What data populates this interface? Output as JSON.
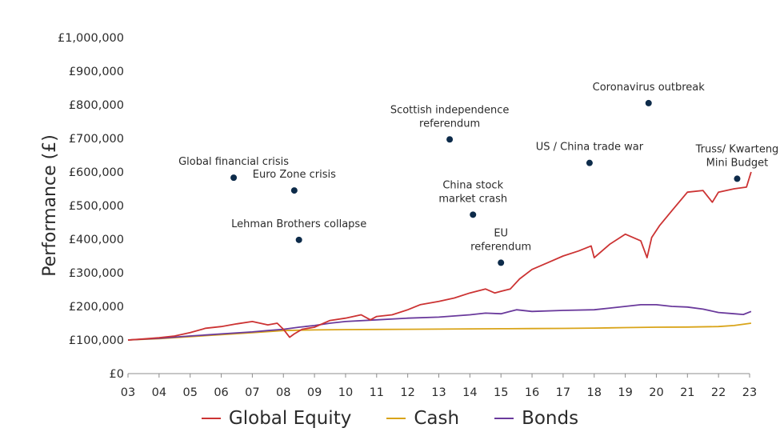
{
  "chart_data": {
    "type": "line",
    "ylabel": "Performance (£)",
    "xlabel": "",
    "ylim": [
      0,
      1000000
    ],
    "xlim": [
      2003,
      2023
    ],
    "y_ticks": [
      "£0",
      "£100,000",
      "£200,000",
      "£300,000",
      "£400,000",
      "£500,000",
      "£600,000",
      "£700,000",
      "£800,000",
      "£900,000",
      "£1,000,000"
    ],
    "x_ticks": [
      "03",
      "04",
      "05",
      "06",
      "07",
      "08",
      "09",
      "10",
      "11",
      "12",
      "13",
      "14",
      "15",
      "16",
      "17",
      "18",
      "19",
      "20",
      "21",
      "22",
      "23"
    ],
    "grid": false,
    "legend_position": "bottom",
    "series": [
      {
        "name": "Global Equity",
        "color": "#cc3333",
        "points": [
          [
            2003,
            100000
          ],
          [
            2003.5,
            103000
          ],
          [
            2004,
            107000
          ],
          [
            2004.5,
            112000
          ],
          [
            2005,
            122000
          ],
          [
            2005.5,
            135000
          ],
          [
            2006,
            140000
          ],
          [
            2006.5,
            148000
          ],
          [
            2007,
            155000
          ],
          [
            2007.5,
            145000
          ],
          [
            2007.8,
            150000
          ],
          [
            2008,
            132000
          ],
          [
            2008.2,
            108000
          ],
          [
            2008.35,
            118000
          ],
          [
            2008.6,
            132000
          ],
          [
            2009,
            138000
          ],
          [
            2009.5,
            158000
          ],
          [
            2010,
            165000
          ],
          [
            2010.5,
            175000
          ],
          [
            2010.8,
            160000
          ],
          [
            2011,
            170000
          ],
          [
            2011.5,
            175000
          ],
          [
            2012,
            190000
          ],
          [
            2012.4,
            205000
          ],
          [
            2013,
            215000
          ],
          [
            2013.5,
            225000
          ],
          [
            2014,
            240000
          ],
          [
            2014.5,
            252000
          ],
          [
            2014.8,
            240000
          ],
          [
            2015,
            245000
          ],
          [
            2015.3,
            252000
          ],
          [
            2015.6,
            282000
          ],
          [
            2016,
            310000
          ],
          [
            2016.5,
            330000
          ],
          [
            2017,
            350000
          ],
          [
            2017.5,
            365000
          ],
          [
            2017.9,
            380000
          ],
          [
            2018,
            345000
          ],
          [
            2018.5,
            385000
          ],
          [
            2019,
            415000
          ],
          [
            2019.5,
            395000
          ],
          [
            2019.7,
            345000
          ],
          [
            2019.85,
            405000
          ],
          [
            2020.1,
            440000
          ],
          [
            2020.5,
            485000
          ],
          [
            2021,
            540000
          ],
          [
            2021.5,
            545000
          ],
          [
            2021.8,
            510000
          ],
          [
            2022,
            540000
          ],
          [
            2022.5,
            550000
          ],
          [
            2022.9,
            555000
          ],
          [
            2023.05,
            600000
          ]
        ]
      },
      {
        "name": "Cash",
        "color": "#d9a419",
        "points": [
          [
            2003,
            100000
          ],
          [
            2004,
            104000
          ],
          [
            2005,
            110000
          ],
          [
            2006,
            116000
          ],
          [
            2007,
            122000
          ],
          [
            2008,
            128000
          ],
          [
            2009,
            130000
          ],
          [
            2010,
            131000
          ],
          [
            2011,
            131500
          ],
          [
            2012,
            132000
          ],
          [
            2013,
            132500
          ],
          [
            2014,
            133000
          ],
          [
            2015,
            133500
          ],
          [
            2016,
            134000
          ],
          [
            2017,
            134500
          ],
          [
            2018,
            135500
          ],
          [
            2019,
            137000
          ],
          [
            2020,
            138000
          ],
          [
            2021,
            138500
          ],
          [
            2022,
            140000
          ],
          [
            2022.5,
            143000
          ],
          [
            2023.05,
            150000
          ]
        ]
      },
      {
        "name": "Bonds",
        "color": "#6a3a9c",
        "points": [
          [
            2003,
            100000
          ],
          [
            2004,
            105000
          ],
          [
            2005,
            112000
          ],
          [
            2006,
            118000
          ],
          [
            2007,
            124000
          ],
          [
            2007.5,
            128000
          ],
          [
            2008,
            132000
          ],
          [
            2008.5,
            138000
          ],
          [
            2009,
            143000
          ],
          [
            2009.5,
            150000
          ],
          [
            2010,
            155000
          ],
          [
            2011,
            160000
          ],
          [
            2012,
            165000
          ],
          [
            2013,
            168000
          ],
          [
            2014,
            175000
          ],
          [
            2014.5,
            180000
          ],
          [
            2015,
            178000
          ],
          [
            2015.5,
            190000
          ],
          [
            2016,
            185000
          ],
          [
            2017,
            188000
          ],
          [
            2018,
            190000
          ],
          [
            2018.5,
            195000
          ],
          [
            2019,
            200000
          ],
          [
            2019.5,
            205000
          ],
          [
            2020,
            205000
          ],
          [
            2020.5,
            200000
          ],
          [
            2021,
            198000
          ],
          [
            2021.5,
            192000
          ],
          [
            2022,
            182000
          ],
          [
            2022.5,
            178000
          ],
          [
            2022.8,
            176000
          ],
          [
            2023.05,
            185000
          ]
        ]
      }
    ],
    "annotations": [
      {
        "label": [
          "Global financial crisis"
        ],
        "x": 2006.4,
        "y": 583000
      },
      {
        "label": [
          "Lehman Brothers collapse"
        ],
        "x": 2008.5,
        "y": 398000
      },
      {
        "label": [
          "Euro Zone crisis"
        ],
        "x": 2008.35,
        "y": 545000
      },
      {
        "label": [
          "Scottish  independence",
          "referendum"
        ],
        "x": 2013.35,
        "y": 697000
      },
      {
        "label": [
          "China stock",
          "market crash"
        ],
        "x": 2014.1,
        "y": 473000
      },
      {
        "label": [
          "EU",
          "referendum"
        ],
        "x": 2015.0,
        "y": 330000
      },
      {
        "label": [
          "US / China trade war"
        ],
        "x": 2017.85,
        "y": 627000
      },
      {
        "label": [
          "Coronavirus outbreak"
        ],
        "x": 2019.75,
        "y": 805000
      },
      {
        "label": [
          "Truss/ Kwarteng",
          "Mini Budget"
        ],
        "x": 2022.6,
        "y": 580000
      }
    ],
    "marker_color": "#0d2b4a"
  }
}
